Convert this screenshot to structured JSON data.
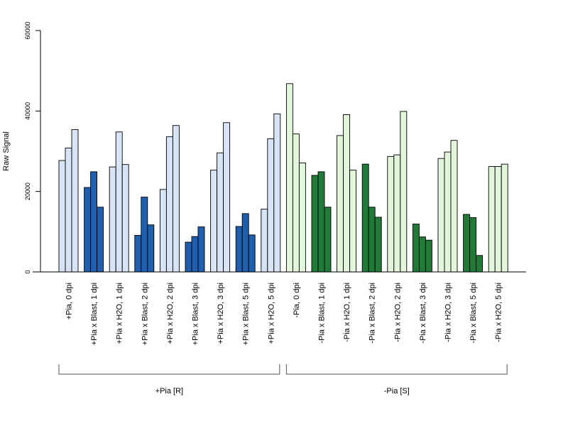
{
  "chart_data": {
    "type": "bar",
    "ylabel": "Raw Signal",
    "ylim": [
      0,
      60000
    ],
    "yticks": [
      0,
      20000,
      40000,
      60000
    ],
    "grid": false,
    "colors": {
      "light_blue": "#d6e4f5",
      "dark_blue": "#1f5fae",
      "light_green": "#e2f6dc",
      "dark_green": "#217a38",
      "outline": "#000000"
    },
    "groups": [
      {
        "label": "+Pia [R]",
        "from": 0,
        "to": 8
      },
      {
        "label": "-Pia [S]",
        "from": 9,
        "to": 17
      }
    ],
    "categories": [
      {
        "label": "+Pia, 0 dpi",
        "values": [
          27700,
          30800,
          35400
        ],
        "color": "light_blue"
      },
      {
        "label": "+Pia x Blast, 1 dpi",
        "values": [
          21000,
          24900,
          16100
        ],
        "color": "dark_blue"
      },
      {
        "label": "+Pia x H2O, 1 dpi",
        "values": [
          26100,
          34800,
          26700
        ],
        "color": "light_blue"
      },
      {
        "label": "+Pia x Blast, 2 dpi",
        "values": [
          9100,
          18600,
          11700
        ],
        "color": "dark_blue"
      },
      {
        "label": "+Pia x H2O, 2 dpi",
        "values": [
          20500,
          33600,
          36400
        ],
        "color": "light_blue"
      },
      {
        "label": "+Pia x Blast, 3 dpi",
        "values": [
          7400,
          8800,
          11200
        ],
        "color": "dark_blue"
      },
      {
        "label": "+Pia x H2O, 3 dpi",
        "values": [
          25300,
          29600,
          37100
        ],
        "color": "light_blue"
      },
      {
        "label": "+Pia x Blast, 5 dpi",
        "values": [
          11300,
          14500,
          9200
        ],
        "color": "dark_blue"
      },
      {
        "label": "+Pia x H2O, 5 dpi",
        "values": [
          15600,
          33100,
          39300
        ],
        "color": "light_blue"
      },
      {
        "label": "-Pia, 0 dpi",
        "values": [
          46800,
          34300,
          27100
        ],
        "color": "light_green"
      },
      {
        "label": "-Pia x Blast, 1 dpi",
        "values": [
          24000,
          24900,
          16100
        ],
        "color": "dark_green"
      },
      {
        "label": "-Pia x H2O, 1 dpi",
        "values": [
          33900,
          39100,
          25300
        ],
        "color": "light_green"
      },
      {
        "label": "-Pia x Blast, 2 dpi",
        "values": [
          26800,
          16100,
          13600
        ],
        "color": "dark_green"
      },
      {
        "label": "-Pia x H2O, 2 dpi",
        "values": [
          28700,
          29100,
          39900
        ],
        "color": "light_green"
      },
      {
        "label": "-Pia x Blast, 3 dpi",
        "values": [
          11900,
          8700,
          7900
        ],
        "color": "dark_green"
      },
      {
        "label": "-Pia x H2O, 3 dpi",
        "values": [
          28200,
          29800,
          32700
        ],
        "color": "light_green"
      },
      {
        "label": "-Pia x Blast, 5 dpi",
        "values": [
          14300,
          13500,
          4100
        ],
        "color": "dark_green"
      },
      {
        "label": "-Pia x H2O, 5 dpi",
        "values": [
          26200,
          26200,
          26800
        ],
        "color": "light_green"
      }
    ]
  }
}
